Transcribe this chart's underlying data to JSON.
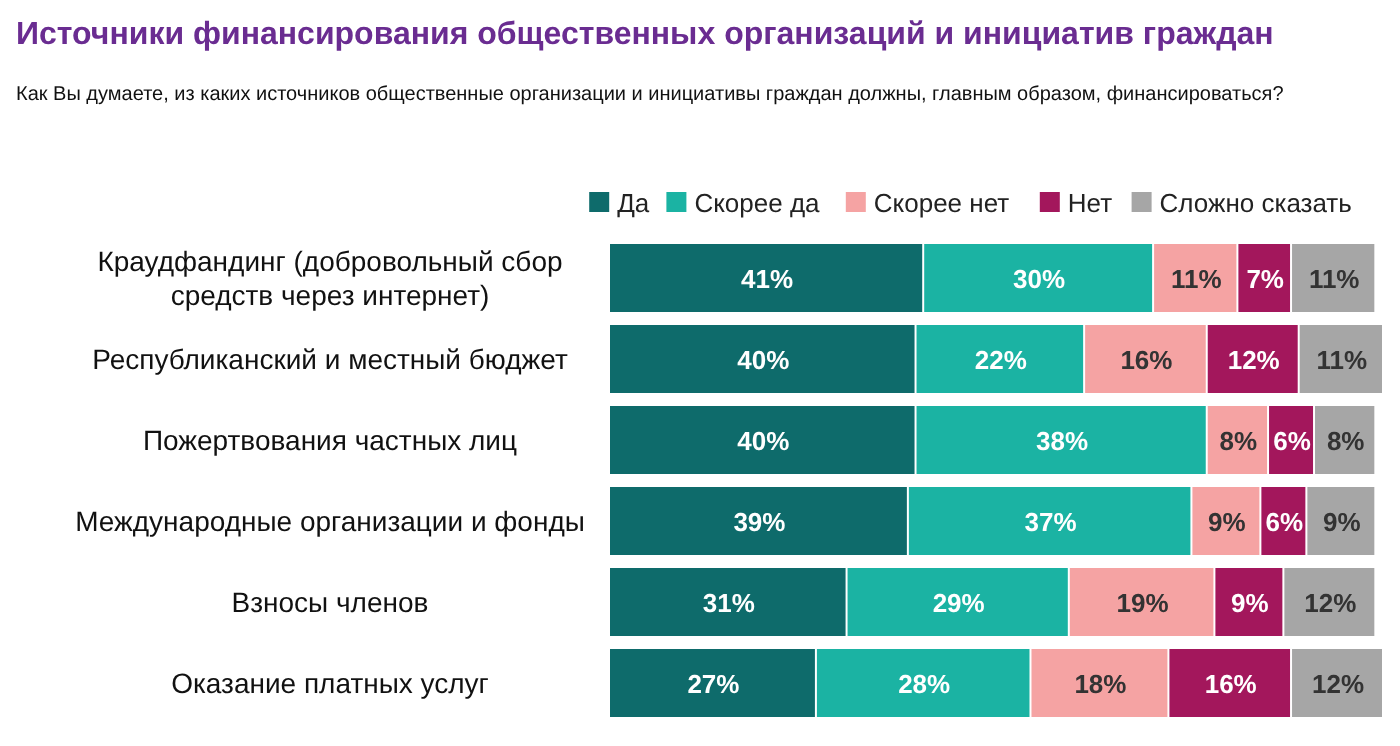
{
  "chart_data": {
    "type": "bar",
    "orientation": "horizontal",
    "stacked": true,
    "legend": "top right",
    "title": "Источники финансирования общественных организаций и инициатив граждан",
    "subtitle": "Как Вы думаете, из каких источников общественные организации и инициативы граждан должны, главным образом, финансироваться?",
    "categories": [
      "Краудфандинг (добровольный сбор средств через интернет)",
      "Республиканский и местный бюджет",
      "Пожертвования частных лиц",
      "Международные организации и фонды",
      "Взносы членов",
      "Оказание платных услуг"
    ],
    "series": [
      {
        "name": "Да",
        "color": "#0e6b6b",
        "values": [
          41,
          40,
          40,
          39,
          31,
          27
        ],
        "value_labels": [
          "41%",
          "40%",
          "40%",
          "39%",
          "31%",
          "27%"
        ]
      },
      {
        "name": "Скорее да",
        "color": "#1bb3a3",
        "values": [
          30,
          22,
          38,
          37,
          29,
          28
        ],
        "value_labels": [
          "30%",
          "22%",
          "38%",
          "37%",
          "29%",
          "28%"
        ]
      },
      {
        "name": "Скорее нет",
        "color": "#f5a3a3",
        "values": [
          11,
          16,
          8,
          9,
          19,
          18
        ],
        "value_labels": [
          "11%",
          "16%",
          "8%",
          "9%",
          "19%",
          "18%"
        ]
      },
      {
        "name": "Нет",
        "color": "#a3175c",
        "values": [
          7,
          12,
          6,
          6,
          9,
          16
        ],
        "value_labels": [
          "7%",
          "12%",
          "6%",
          "6%",
          "9%",
          "16%"
        ]
      },
      {
        "name": "Сложно сказать",
        "color": "#a6a6a6",
        "values": [
          11,
          11,
          8,
          9,
          12,
          12
        ],
        "value_labels": [
          "11%",
          "11%",
          "8%",
          "9%",
          "12%",
          "12%"
        ]
      }
    ]
  }
}
